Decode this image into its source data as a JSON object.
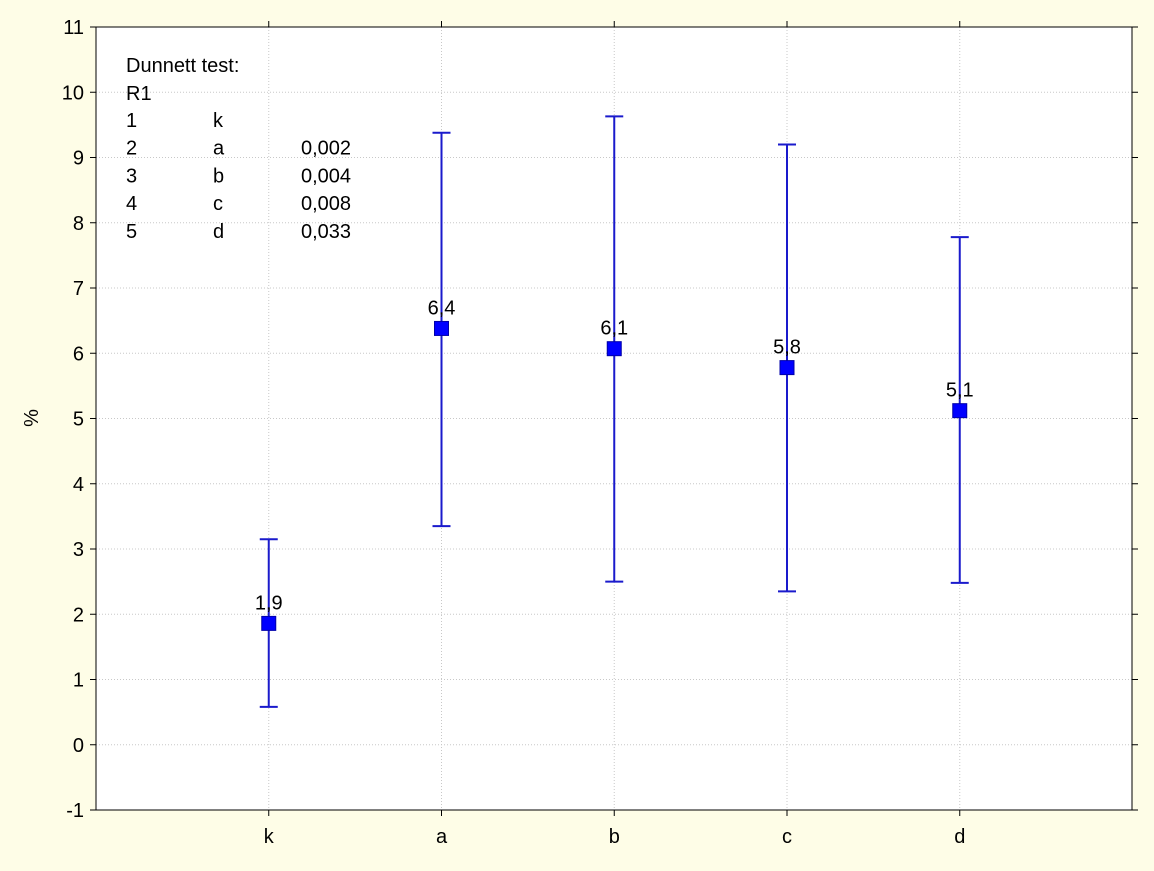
{
  "colors": {
    "background": "#fefde7",
    "plot_background": "#ffffff",
    "marker": "#0000ff",
    "whisker": "#1a1acc",
    "grid": "#c8c8c8",
    "axis": "#000000"
  },
  "chart_data": {
    "type": "scatter",
    "subtype": "means with error bars",
    "title": "",
    "xlabel": "",
    "ylabel": "%",
    "ylim": [
      -1,
      11
    ],
    "y_ticks": [
      -1,
      0,
      1,
      2,
      3,
      4,
      5,
      6,
      7,
      8,
      9,
      10,
      11
    ],
    "categories": [
      "k",
      "a",
      "b",
      "c",
      "d"
    ],
    "grid": true,
    "marker": "filled square",
    "series": [
      {
        "values": [
          1.86,
          6.38,
          6.07,
          5.78,
          5.12
        ],
        "lower": [
          0.58,
          3.35,
          2.5,
          2.35,
          2.48
        ],
        "upper": [
          3.15,
          9.38,
          9.63,
          9.2,
          7.78
        ],
        "data_labels": [
          "1,9",
          "6,4",
          "6,1",
          "5,8",
          "5,1"
        ]
      }
    ],
    "annotation": {
      "title": "Dunnett test:",
      "subtitle": "R1",
      "rows": [
        [
          "1",
          "k",
          ""
        ],
        [
          "2",
          "a",
          "0,002"
        ],
        [
          "3",
          "b",
          "0,004"
        ],
        [
          "4",
          "c",
          "0,008"
        ],
        [
          "5",
          "d",
          "0,033"
        ]
      ]
    }
  }
}
